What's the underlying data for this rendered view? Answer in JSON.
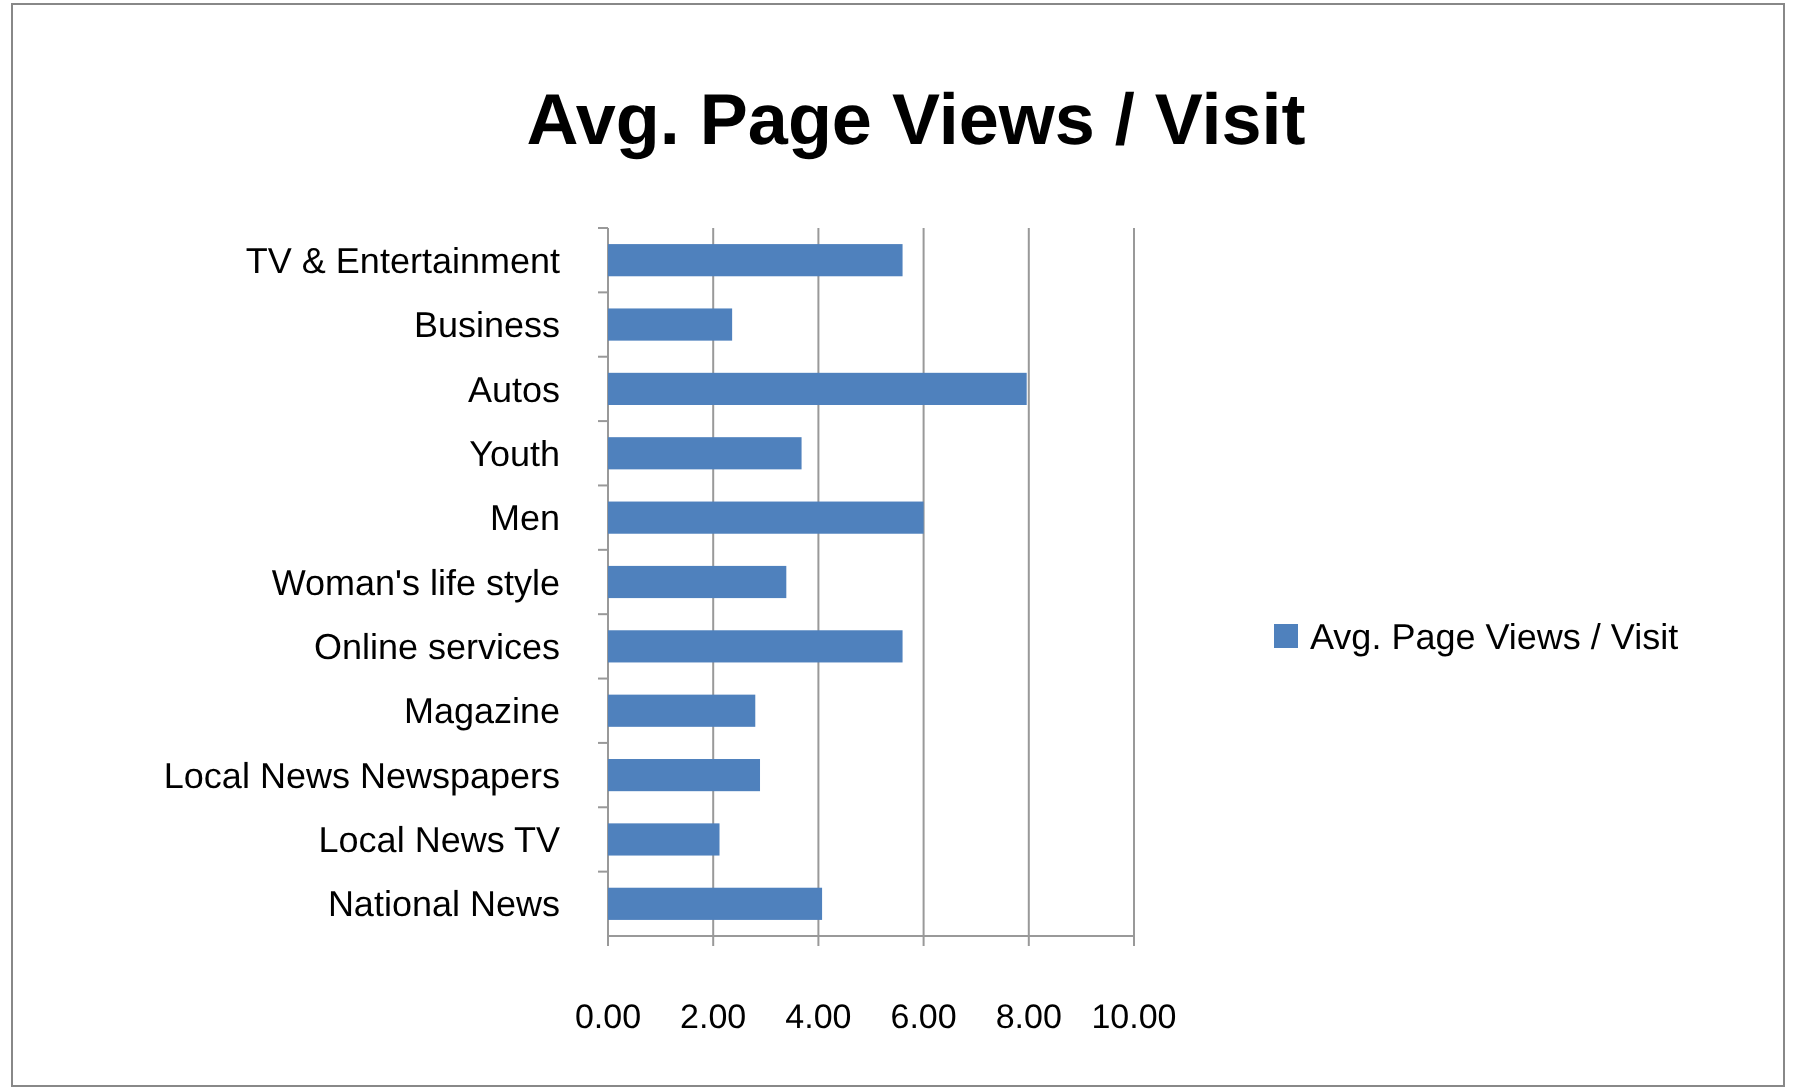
{
  "chart_data": {
    "type": "bar",
    "orientation": "horizontal",
    "title": "Avg. Page Views / Visit",
    "categories": [
      "TV & Entertainment",
      "Business",
      "Autos",
      "Youth",
      "Men",
      "Woman's life style",
      "Online services",
      "Magazine",
      "Local News Newspapers",
      "Local News TV",
      "National News"
    ],
    "series": [
      {
        "name": "Avg. Page Views / Visit",
        "color": "#4f81bd",
        "values": [
          5.6,
          2.36,
          7.96,
          3.68,
          6.0,
          3.39,
          5.6,
          2.8,
          2.89,
          2.12,
          4.07
        ]
      }
    ],
    "xlim": [
      0,
      10
    ],
    "xticks": [
      {
        "value": 0,
        "label": "0.00"
      },
      {
        "value": 2,
        "label": "2.00"
      },
      {
        "value": 4,
        "label": "4.00"
      },
      {
        "value": 6,
        "label": "6.00"
      },
      {
        "value": 8,
        "label": "8.00"
      },
      {
        "value": 10,
        "label": "10.00"
      }
    ],
    "grid": "x",
    "legend": "right"
  }
}
